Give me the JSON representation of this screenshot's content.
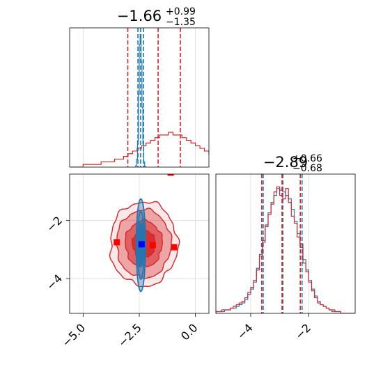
{
  "chart_data": [
    {
      "type": "histogram",
      "panel": "param1-marginal",
      "title": {
        "value": "−1.66",
        "plus": "+0.99",
        "minus": "−1.35"
      },
      "xlim": [
        -5.6,
        0.6
      ],
      "grid": true,
      "series": [
        {
          "name": "",
          "color": "#d62728",
          "bin_start": -5.6,
          "bin_width": 0.2,
          "counts": [
            0,
            0,
            0,
            1,
            1,
            1,
            1,
            2,
            2,
            2,
            3,
            3,
            4,
            5,
            6,
            7,
            8,
            9,
            10,
            11,
            12,
            12,
            13,
            12,
            12,
            11,
            10,
            9,
            8,
            7,
            6,
            5,
            4,
            3,
            2,
            1
          ],
          "quantile_lines": [
            -3.01,
            -1.66,
            -0.67
          ]
        },
        {
          "name": "",
          "color": "#1f77b4",
          "bin_start": -2.7,
          "bin_width": 0.04,
          "counts": [
            0,
            2,
            12,
            40,
            110,
            185,
            200,
            160,
            90,
            35,
            8,
            1,
            0
          ],
          "quantile_lines": [
            -2.56,
            -2.44,
            -2.31
          ]
        }
      ]
    },
    {
      "type": "contour",
      "panel": "joint",
      "xlim": [
        -5.6,
        0.6
      ],
      "ylim": [
        -5.2,
        -0.4
      ],
      "xticks": [
        "−5.0",
        "−2.5",
        "0.0"
      ],
      "yticks": [
        "−2",
        "−4"
      ],
      "xtick_values": [
        -5.0,
        -2.5,
        0.0
      ],
      "ytick_values": [
        -2,
        -4
      ],
      "grid": true,
      "series": [
        {
          "name": "",
          "color": "#d62728",
          "center": [
            -2.3,
            -2.8
          ],
          "sd": [
            1.3,
            0.6
          ]
        },
        {
          "name": "",
          "color": "#1f77b4",
          "center": [
            -2.43,
            -2.85
          ],
          "sd": [
            0.09,
            0.7
          ]
        }
      ],
      "markers": [
        {
          "color": "#ff0000",
          "x": -3.5,
          "y": -2.75
        },
        {
          "color": "#ff0000",
          "x": -1.9,
          "y": -2.85
        },
        {
          "color": "#ff0000",
          "x": -0.95,
          "y": -2.92
        },
        {
          "color": "#ff0000",
          "x": -1.1,
          "y": -0.35
        },
        {
          "color": "#0000ff",
          "x": -2.4,
          "y": -2.82
        }
      ]
    },
    {
      "type": "histogram",
      "panel": "param2-marginal",
      "title": {
        "value": "−2.89",
        "plus": "+0.66",
        "minus": "−0.68"
      },
      "xlim": [
        -5.2,
        -0.4
      ],
      "xticks": [
        "−4",
        "−2"
      ],
      "xtick_values": [
        -4,
        -2
      ],
      "grid": true,
      "series": [
        {
          "name": "",
          "color": "#1f77b4",
          "bin_start": -5.2,
          "bin_width": 0.1,
          "counts": [
            1,
            1,
            1,
            2,
            2,
            3,
            3,
            4,
            5,
            6,
            8,
            11,
            14,
            18,
            26,
            34,
            42,
            50,
            58,
            64,
            68,
            72,
            71,
            70,
            68,
            66,
            60,
            53,
            46,
            38,
            31,
            25,
            19,
            14,
            10,
            7,
            5,
            4,
            3,
            2,
            1,
            1,
            1,
            0,
            0,
            0,
            0,
            0
          ],
          "quantile_lines": [
            -3.57,
            -2.89,
            -2.23
          ]
        },
        {
          "name": "",
          "color": "#d62728",
          "bin_start": -5.2,
          "bin_width": 0.1,
          "counts": [
            1,
            1,
            2,
            2,
            2,
            3,
            4,
            5,
            6,
            7,
            9,
            12,
            15,
            19,
            25,
            33,
            41,
            51,
            57,
            63,
            70,
            73,
            68,
            66,
            72,
            64,
            56,
            52,
            44,
            40,
            29,
            24,
            18,
            13,
            9,
            6,
            5,
            4,
            3,
            2,
            2,
            1,
            1,
            0,
            0,
            0,
            0,
            0
          ],
          "quantile_lines": [
            -3.62,
            -2.92,
            -2.29
          ]
        }
      ]
    }
  ]
}
